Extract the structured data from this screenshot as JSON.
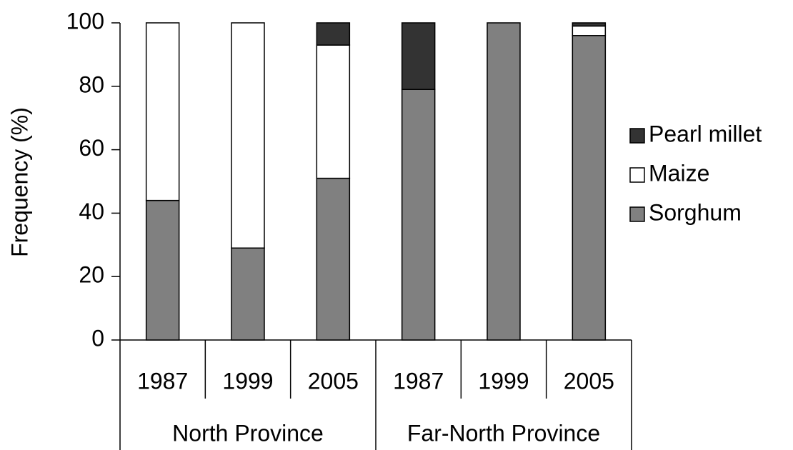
{
  "chart_data": {
    "type": "stacked_bar",
    "y_label": "Frequency (%)",
    "groups": [
      {
        "name": "North Province",
        "categories": [
          "1987",
          "1999",
          "2005"
        ]
      },
      {
        "name": "Far-North Province",
        "categories": [
          "1987",
          "1999",
          "2005"
        ]
      }
    ],
    "series": [
      {
        "name": "Sorghum",
        "color": "#808080",
        "values": [
          44,
          29,
          51,
          79,
          100,
          96
        ]
      },
      {
        "name": "Maize",
        "color": "#ffffff",
        "values": [
          56,
          71,
          42,
          0,
          0,
          3
        ]
      },
      {
        "name": "Pearl millet",
        "color": "#333333",
        "values": [
          0,
          0,
          7,
          21,
          0,
          1
        ]
      }
    ],
    "ylim": [
      0,
      100
    ],
    "yticks": [
      0,
      20,
      40,
      60,
      80,
      100
    ],
    "legend": "right"
  }
}
